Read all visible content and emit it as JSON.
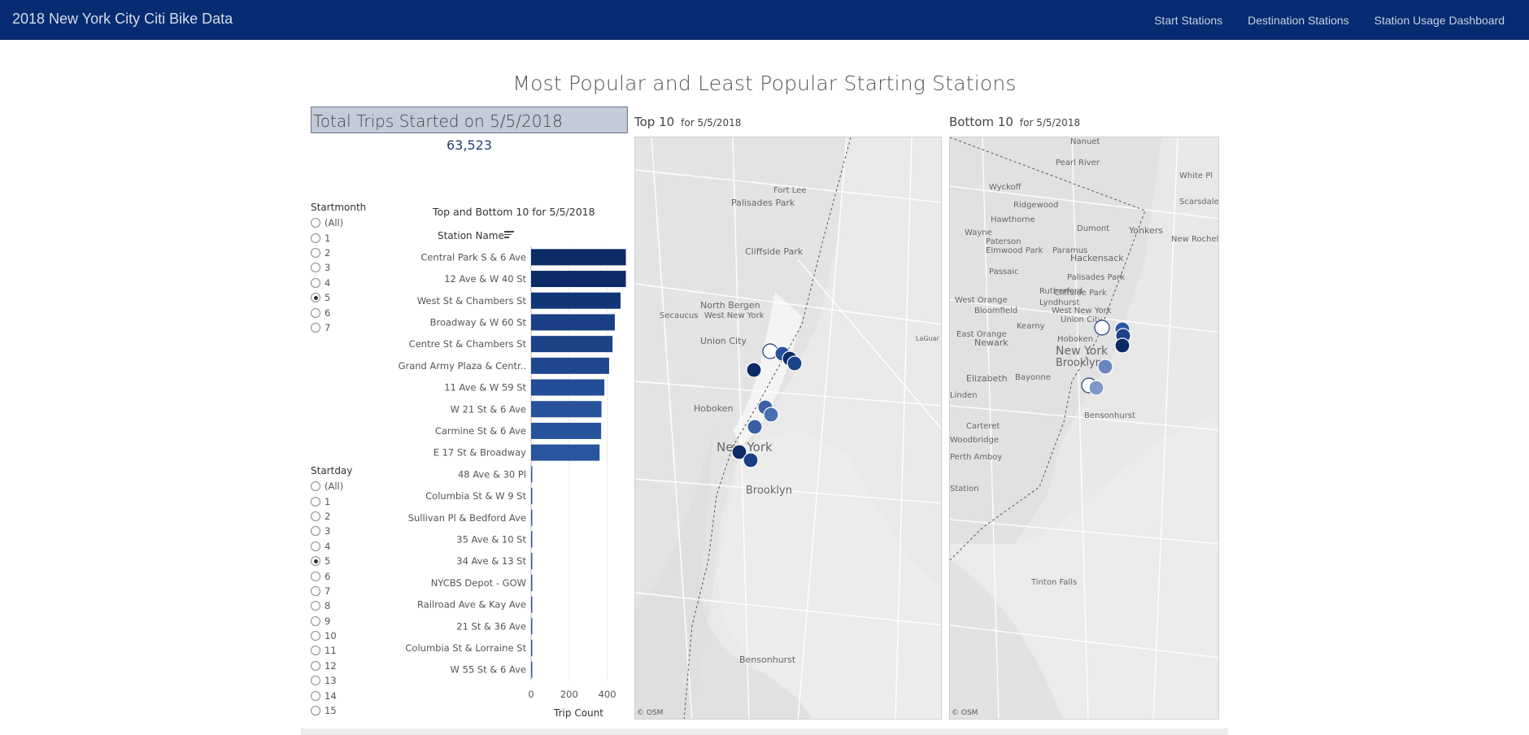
{
  "navbar": {
    "brand": "2018 New York City Citi Bike Data",
    "links": [
      "Start Stations",
      "Destination Stations",
      "Station Usage Dashboard"
    ]
  },
  "dashboard": {
    "title": "Most Popular and Least Popular Starting Stations",
    "total_label": "Total Trips Started on 5/5/2018",
    "total_value": "63,523"
  },
  "filters": {
    "startmonth": {
      "title": "Startmonth",
      "options": [
        "(All)",
        "1",
        "2",
        "3",
        "4",
        "5",
        "6",
        "7"
      ],
      "selected": "5"
    },
    "startday": {
      "title": "Startday",
      "options": [
        "(All)",
        "1",
        "2",
        "3",
        "4",
        "5",
        "6",
        "7",
        "8",
        "9",
        "10",
        "11",
        "12",
        "13",
        "14",
        "15"
      ],
      "selected": "5"
    }
  },
  "chart_data": {
    "type": "bar",
    "orientation": "horizontal",
    "title": "Top and Bottom  10 for 5/5/2018",
    "ylabel": "Station Name",
    "xlabel": "Trip Count",
    "xlim": [
      0,
      500
    ],
    "xticks": [
      0,
      200,
      400
    ],
    "grid": true,
    "categories": [
      "Central Park S & 6 Ave",
      "12 Ave & W 40 St",
      "West St & Chambers St",
      "Broadway & W 60 St",
      "Centre St & Chambers St",
      "Grand Army Plaza & Centr..",
      "11 Ave & W 59 St",
      "W 21 St & 6 Ave",
      "Carmine St & 6 Ave",
      "E 17 St & Broadway",
      "48 Ave & 30 Pl",
      "Columbia St & W 9 St",
      "Sullivan Pl & Bedford Ave",
      "35 Ave & 10 St",
      "34 Ave & 13 St",
      "NYCBS Depot - GOW",
      "Railroad Ave & Kay Ave",
      "21 St & 36 Ave",
      "Columbia St & Lorraine St",
      "W 55 St & 6 Ave"
    ],
    "values": [
      498,
      498,
      470,
      440,
      428,
      410,
      385,
      370,
      368,
      360,
      3,
      3,
      2,
      2,
      2,
      1,
      1,
      1,
      1,
      1
    ],
    "colors": [
      "#0b2a66",
      "#0b2a66",
      "#133679",
      "#1a3f86",
      "#1c4288",
      "#1f4790",
      "#244d97",
      "#27529c",
      "#27529c",
      "#29549e",
      "#3457a0",
      "#3457a0",
      "#3457a0",
      "#3457a0",
      "#3457a0",
      "#3457a0",
      "#3457a0",
      "#3457a0",
      "#3457a0",
      "#3457a0"
    ]
  },
  "maps": {
    "top": {
      "title": "Top 10",
      "subtitle": "for 5/5/2018",
      "attribution": "© OSM",
      "labels": [
        "Palisades Park",
        "Fort Lee",
        "Cliffside Park",
        "North Bergen",
        "Secaucus",
        "West New York",
        "Union City",
        "Hoboken",
        "New York",
        "Brooklyn",
        "Bensonhurst",
        "LaGuar Airpo"
      ]
    },
    "bottom": {
      "title": "Bottom 10",
      "subtitle": "for 5/5/2018",
      "attribution": "© OSM",
      "labels": [
        "Nanuet",
        "Pearl River",
        "White Pl",
        "Wyckoff",
        "Ridgewood",
        "Scarsdale",
        "Hawthorne",
        "Dumont",
        "Yonkers",
        "Wayne",
        "Paterson",
        "Elmwood Park",
        "Paramus",
        "New Rochel",
        "Hackensack",
        "Passaic",
        "Palisades Park",
        "Rutherford",
        "Cliffside Park",
        "Lyndhurst",
        "West Orange",
        "Bloomfield",
        "West New York",
        "Union City",
        "East Orange",
        "Kearny",
        "Hoboken",
        "Newark",
        "New York",
        "Brooklyn",
        "Elizabeth",
        "Bayonne",
        "Linden",
        "Bensonhurst",
        "Carteret",
        "Woodbridge",
        "Perth Amboy",
        "Station",
        "Tinton Falls"
      ]
    }
  }
}
